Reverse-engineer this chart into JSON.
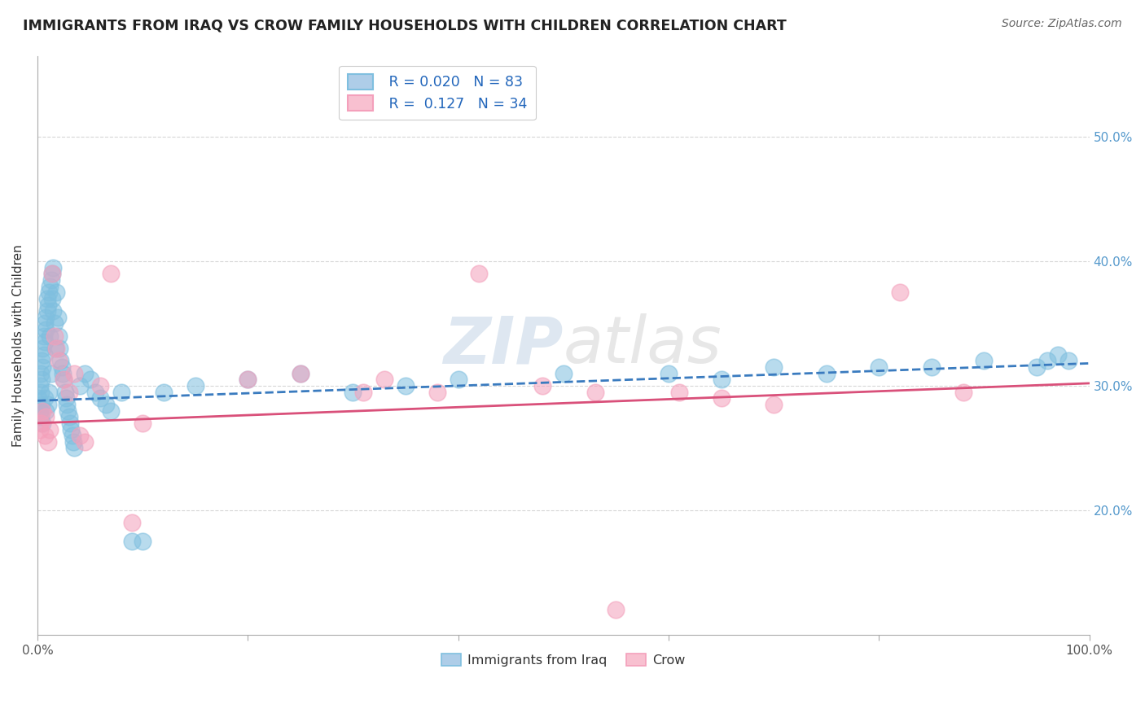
{
  "title": "IMMIGRANTS FROM IRAQ VS CROW FAMILY HOUSEHOLDS WITH CHILDREN CORRELATION CHART",
  "source": "Source: ZipAtlas.com",
  "ylabel": "Family Households with Children",
  "watermark": "ZIPatlas",
  "legend_r1": "R = 0.020",
  "legend_n1": "N = 83",
  "legend_r2": "R =  0.127",
  "legend_n2": "N = 34",
  "legend_label1": "Immigrants from Iraq",
  "legend_label2": "Crow",
  "xlim": [
    0.0,
    1.0
  ],
  "ylim": [
    0.1,
    0.565
  ],
  "xticks": [
    0.0,
    0.2,
    0.4,
    0.6,
    0.8,
    1.0
  ],
  "xtick_labels": [
    "0.0%",
    "",
    "",
    "",
    "",
    "100.0%"
  ],
  "ytick_positions": [
    0.2,
    0.3,
    0.4,
    0.5
  ],
  "ytick_labels": [
    "20.0%",
    "30.0%",
    "40.0%",
    "50.0%"
  ],
  "blue_color": "#7fbfdf",
  "pink_color": "#f4a0bb",
  "blue_line_color": "#3a7bbf",
  "pink_line_color": "#d9507a",
  "grid_color": "#cccccc",
  "background_color": "#ffffff",
  "blue_scatter_x": [
    0.001,
    0.002,
    0.002,
    0.003,
    0.003,
    0.003,
    0.004,
    0.004,
    0.004,
    0.005,
    0.005,
    0.005,
    0.006,
    0.006,
    0.007,
    0.007,
    0.007,
    0.008,
    0.008,
    0.008,
    0.009,
    0.009,
    0.01,
    0.01,
    0.011,
    0.011,
    0.012,
    0.012,
    0.013,
    0.013,
    0.014,
    0.014,
    0.015,
    0.015,
    0.016,
    0.017,
    0.018,
    0.019,
    0.02,
    0.021,
    0.022,
    0.023,
    0.024,
    0.025,
    0.026,
    0.027,
    0.028,
    0.029,
    0.03,
    0.031,
    0.032,
    0.033,
    0.034,
    0.035,
    0.04,
    0.045,
    0.05,
    0.055,
    0.06,
    0.065,
    0.07,
    0.08,
    0.09,
    0.1,
    0.12,
    0.15,
    0.2,
    0.25,
    0.3,
    0.35,
    0.4,
    0.5,
    0.6,
    0.65,
    0.7,
    0.75,
    0.8,
    0.85,
    0.9,
    0.95,
    0.96,
    0.97,
    0.98
  ],
  "blue_scatter_y": [
    0.29,
    0.3,
    0.28,
    0.31,
    0.295,
    0.275,
    0.32,
    0.305,
    0.285,
    0.33,
    0.315,
    0.27,
    0.34,
    0.325,
    0.35,
    0.335,
    0.29,
    0.355,
    0.345,
    0.28,
    0.36,
    0.37,
    0.365,
    0.285,
    0.375,
    0.295,
    0.38,
    0.34,
    0.385,
    0.31,
    0.39,
    0.37,
    0.395,
    0.36,
    0.35,
    0.33,
    0.375,
    0.355,
    0.34,
    0.33,
    0.32,
    0.315,
    0.31,
    0.305,
    0.295,
    0.29,
    0.285,
    0.28,
    0.275,
    0.27,
    0.265,
    0.26,
    0.255,
    0.25,
    0.3,
    0.31,
    0.305,
    0.295,
    0.29,
    0.285,
    0.28,
    0.295,
    0.175,
    0.175,
    0.295,
    0.3,
    0.305,
    0.31,
    0.295,
    0.3,
    0.305,
    0.31,
    0.31,
    0.305,
    0.315,
    0.31,
    0.315,
    0.315,
    0.32,
    0.315,
    0.32,
    0.325,
    0.32
  ],
  "pink_scatter_x": [
    0.002,
    0.003,
    0.005,
    0.007,
    0.008,
    0.01,
    0.012,
    0.014,
    0.016,
    0.018,
    0.02,
    0.025,
    0.03,
    0.035,
    0.04,
    0.045,
    0.06,
    0.07,
    0.09,
    0.1,
    0.2,
    0.25,
    0.31,
    0.33,
    0.38,
    0.42,
    0.48,
    0.53,
    0.55,
    0.61,
    0.65,
    0.7,
    0.82,
    0.88
  ],
  "pink_scatter_y": [
    0.265,
    0.27,
    0.28,
    0.26,
    0.275,
    0.255,
    0.265,
    0.39,
    0.34,
    0.33,
    0.32,
    0.305,
    0.295,
    0.31,
    0.26,
    0.255,
    0.3,
    0.39,
    0.19,
    0.27,
    0.305,
    0.31,
    0.295,
    0.305,
    0.295,
    0.39,
    0.3,
    0.295,
    0.12,
    0.295,
    0.29,
    0.285,
    0.375,
    0.295
  ],
  "blue_trendline_x": [
    0.0,
    1.0
  ],
  "blue_trendline_y": [
    0.288,
    0.318
  ],
  "pink_trendline_x": [
    0.0,
    1.0
  ],
  "pink_trendline_y": [
    0.27,
    0.302
  ]
}
